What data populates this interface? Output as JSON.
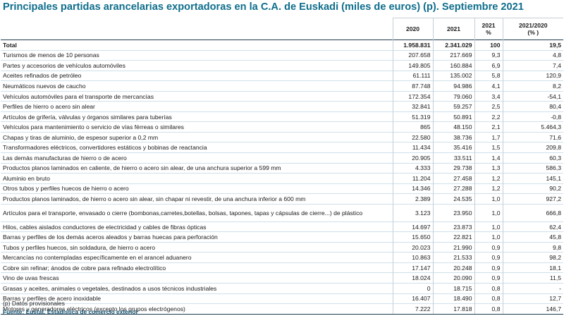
{
  "title": "Principales partidas arancelarias exportadoras en la C.A. de Euskadi (miles de euros) (p). Septiembre 2021",
  "headers": {
    "y2020": "2020",
    "y2021": "2021",
    "pct_line1": "2021",
    "pct_line2": "%",
    "var_line1": "2021/2020",
    "var_line2": "(% )"
  },
  "total": {
    "label": "Total",
    "y2020": "1.958.831",
    "y2021": "2.341.029",
    "pct": "100",
    "var": "19,5"
  },
  "rows": [
    {
      "label": "Turismos de menos de  10 personas",
      "y2020": "207.658",
      "y2021": "217.669",
      "pct": "9,3",
      "var": "4,8"
    },
    {
      "label": "Partes y accesorios de vehículos automóviles",
      "y2020": "149.805",
      "y2021": "160.884",
      "pct": "6,9",
      "var": "7,4"
    },
    {
      "label": "Aceites refinados de petróleo",
      "y2020": "61.111",
      "y2021": "135.002",
      "pct": "5,8",
      "var": "120,9"
    },
    {
      "label": "Neumáticos nuevos de caucho",
      "y2020": "87.748",
      "y2021": "94.986",
      "pct": "4,1",
      "var": "8,2"
    },
    {
      "label": "Vehículos automóviles para el transporte de mercancías",
      "y2020": "172.354",
      "y2021": "79.060",
      "pct": "3,4",
      "var": "-54,1"
    },
    {
      "label": "Perfiles de hierro o acero sin alear",
      "y2020": "32.841",
      "y2021": "59.257",
      "pct": "2,5",
      "var": "80,4"
    },
    {
      "label": "Artículos de grifería, válvulas y órganos similares para tuberías",
      "y2020": "51.319",
      "y2021": "50.891",
      "pct": "2,2",
      "var": "-0,8"
    },
    {
      "label": "Vehículos para mantenimiento o servicio de vías férreas o similares",
      "y2020": "865",
      "y2021": "48.150",
      "pct": "2,1",
      "var": "5.464,3"
    },
    {
      "label": "Chapas y tiras de aluminio, de espesor superior a 0,2 mm",
      "y2020": "22.580",
      "y2021": "38.736",
      "pct": "1,7",
      "var": "71,6"
    },
    {
      "label": "Transformadores eléctricos, convertidores estáticos y bobinas de reactancia",
      "y2020": "11.434",
      "y2021": "35.416",
      "pct": "1,5",
      "var": "209,8"
    },
    {
      "label": "Las demás manufacturas de hierro o de acero",
      "y2020": "20.905",
      "y2021": "33.511",
      "pct": "1,4",
      "var": "60,3"
    },
    {
      "label": "Productos planos laminados en caliente, de hierro o acero sin alear, de una anchura superior a  599 mm",
      "y2020": "4.333",
      "y2021": "29.738",
      "pct": "1,3",
      "var": "586,3"
    },
    {
      "label": "Aluminio en bruto",
      "y2020": "11.204",
      "y2021": "27.458",
      "pct": "1,2",
      "var": "145,1"
    },
    {
      "label": "Otros tubos y perfiles huecos de hierro o acero",
      "y2020": "14.346",
      "y2021": "27.288",
      "pct": "1,2",
      "var": "90,2"
    },
    {
      "label": "Productos planos laminados, de hierro o acero sin alear, sin chapar ni revestir, de una anchura inferior a  600 mm",
      "y2020": "2.389",
      "y2021": "24.535",
      "pct": "1,0",
      "var": "927,2"
    },
    {
      "label": "Artículos para el transporte, envasado o cierre (bombonas,carretes,botellas, bolsas, tapones, tapas y cápsulas de cierre...) de plástico",
      "y2020": "3.123",
      "y2021": "23.950",
      "pct": "1,0",
      "var": "666,8",
      "tall": true
    },
    {
      "label": "Hilos, cables aislados conductores de electricidad y cables de fibras ópticas",
      "y2020": "14.697",
      "y2021": "23.873",
      "pct": "1,0",
      "var": "62,4"
    },
    {
      "label": "Barras y perfiles de los demás aceros aleados y barras huecas para perforación",
      "y2020": "15.650",
      "y2021": "22.821",
      "pct": "1,0",
      "var": "45,8"
    },
    {
      "label": "Tubos y perfiles huecos, sin soldadura, de hierro o acero",
      "y2020": "20.023",
      "y2021": "21.990",
      "pct": "0,9",
      "var": "9,8"
    },
    {
      "label": "Mercancías no contempladas específicamente en el arancel aduanero",
      "y2020": "10.863",
      "y2021": "21.533",
      "pct": "0,9",
      "var": "98,2"
    },
    {
      "label": "Cobre sin refinar; ánodos de cobre para refinado electrolítico",
      "y2020": "17.147",
      "y2021": "20.248",
      "pct": "0,9",
      "var": "18,1"
    },
    {
      "label": "Vino de uvas frescas",
      "y2020": "18.024",
      "y2021": "20.090",
      "pct": "0,9",
      "var": "11,5"
    },
    {
      "label": "Grasas y aceites, animales o vegetales, destinados a usos técnicos  industriales",
      "y2020": "0",
      "y2021": "18.715",
      "pct": "0,8",
      "var": "-"
    },
    {
      "label": "Barras y perfiles de acero inoxidable",
      "y2020": "16.407",
      "y2021": "18.490",
      "pct": "0,8",
      "var": "12,7"
    },
    {
      "label": "Motores y generadores eléctricos (excepto los grupos electrógenos)",
      "y2020": "7.222",
      "y2021": "17.818",
      "pct": "0,8",
      "var": "146,7"
    }
  ],
  "footnote": "(p) Datos provisionales",
  "source": "Fuente: Eustat. Estadística de comercio exterior"
}
